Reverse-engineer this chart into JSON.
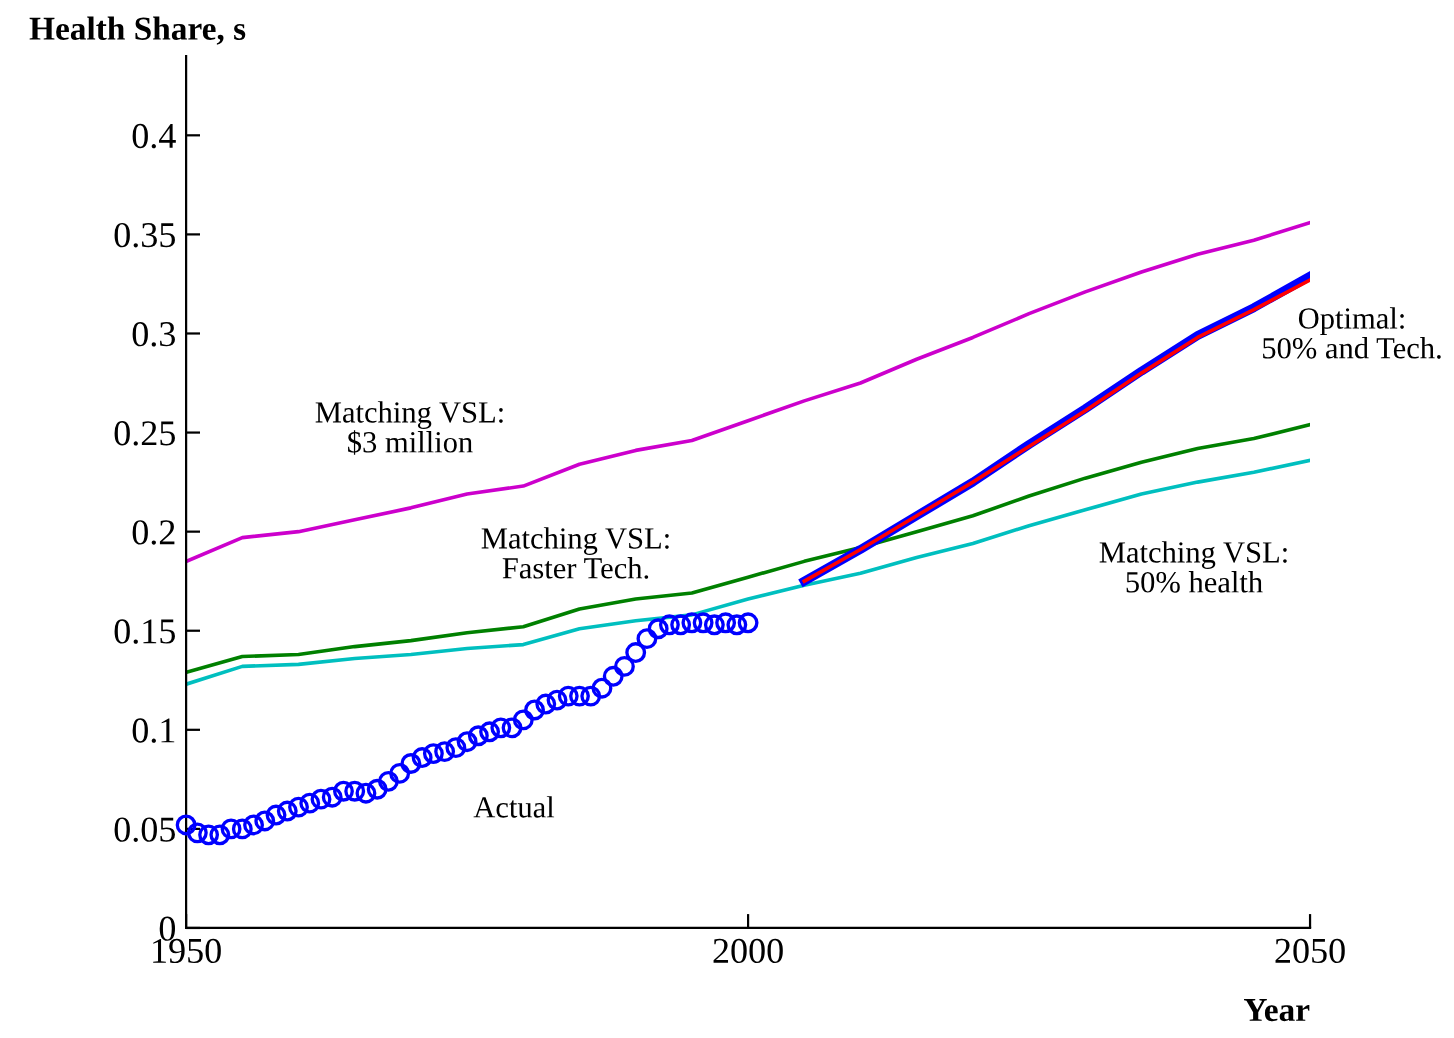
{
  "chart_data": {
    "type": "line",
    "ylabel": "Health Share, s",
    "xlabel": "Year",
    "xlim": [
      1950,
      2050
    ],
    "ylim": [
      0,
      0.44
    ],
    "xticks": [
      1950,
      2000,
      2050
    ],
    "yticks": [
      0,
      0.05,
      0.1,
      0.15,
      0.2,
      0.25,
      0.3,
      0.35,
      0.4
    ],
    "grid": false,
    "legend": false,
    "series": [
      {
        "color": "#cc00cc",
        "x": [
          1950,
          1955,
          1960,
          1965,
          1970,
          1975,
          1980,
          1985,
          1990,
          1995,
          2000,
          2005,
          2010,
          2015,
          2020,
          2025,
          2030,
          2035,
          2040,
          2045,
          2050
        ],
        "values": [
          0.185,
          0.197,
          0.2,
          0.206,
          0.212,
          0.219,
          0.223,
          0.234,
          0.241,
          0.246,
          0.256,
          0.266,
          0.275,
          0.287,
          0.298,
          0.31,
          0.321,
          0.331,
          0.34,
          0.347,
          0.356
        ]
      },
      {
        "color": "#008000",
        "x": [
          1950,
          1955,
          1960,
          1965,
          1970,
          1975,
          1980,
          1985,
          1990,
          1995,
          2000,
          2005,
          2010,
          2015,
          2020,
          2025,
          2030,
          2035,
          2040,
          2045,
          2050
        ],
        "values": [
          0.129,
          0.137,
          0.138,
          0.142,
          0.145,
          0.149,
          0.152,
          0.161,
          0.166,
          0.169,
          0.177,
          0.185,
          0.192,
          0.2,
          0.208,
          0.218,
          0.227,
          0.235,
          0.242,
          0.247,
          0.254
        ]
      },
      {
        "color": "#00bfbf",
        "x": [
          1950,
          1955,
          1960,
          1965,
          1970,
          1975,
          1980,
          1985,
          1990,
          1995,
          2000,
          2005,
          2010,
          2015,
          2020,
          2025,
          2030,
          2035,
          2040,
          2045,
          2050
        ],
        "values": [
          0.123,
          0.132,
          0.133,
          0.136,
          0.138,
          0.141,
          0.143,
          0.151,
          0.155,
          0.158,
          0.166,
          0.173,
          0.179,
          0.187,
          0.194,
          0.203,
          0.211,
          0.219,
          0.225,
          0.23,
          0.236
        ]
      },
      {
        "color": "#0000ff",
        "x": [
          2005,
          2010,
          2015,
          2020,
          2025,
          2030,
          2035,
          2040,
          2045,
          2050
        ],
        "values": [
          0.175,
          0.191,
          0.208,
          0.225,
          0.244,
          0.262,
          0.281,
          0.299,
          0.313,
          0.329
        ]
      },
      {
        "color": "#ff0000",
        "x": [
          2005,
          2010,
          2015,
          2020,
          2025,
          2030,
          2035,
          2040,
          2045,
          2050
        ],
        "values": [
          0.175,
          0.191,
          0.208,
          0.225,
          0.243,
          0.261,
          0.28,
          0.298,
          0.312,
          0.327
        ]
      },
      {
        "type": "scatter",
        "marker": "circle",
        "color": "#0000ff",
        "x": [
          1950,
          1951,
          1952,
          1953,
          1954,
          1955,
          1956,
          1957,
          1958,
          1959,
          1960,
          1961,
          1962,
          1963,
          1964,
          1965,
          1966,
          1967,
          1968,
          1969,
          1970,
          1971,
          1972,
          1973,
          1974,
          1975,
          1976,
          1977,
          1978,
          1979,
          1980,
          1981,
          1982,
          1983,
          1984,
          1985,
          1986,
          1987,
          1988,
          1989,
          1990,
          1991,
          1992,
          1993,
          1994,
          1995,
          1996,
          1997,
          1998,
          1999,
          2000
        ],
        "values": [
          0.052,
          0.048,
          0.047,
          0.047,
          0.05,
          0.05,
          0.052,
          0.054,
          0.057,
          0.059,
          0.061,
          0.063,
          0.065,
          0.066,
          0.069,
          0.069,
          0.068,
          0.07,
          0.074,
          0.078,
          0.083,
          0.086,
          0.088,
          0.089,
          0.091,
          0.094,
          0.097,
          0.099,
          0.101,
          0.101,
          0.105,
          0.11,
          0.113,
          0.115,
          0.117,
          0.117,
          0.117,
          0.121,
          0.127,
          0.132,
          0.139,
          0.146,
          0.151,
          0.153,
          0.153,
          0.154,
          0.154,
          0.153,
          0.154,
          0.153,
          0.154
        ]
      }
    ],
    "annotations": [
      "Matching VSL:\n$3 million",
      "Matching VSL:\nFaster Tech.",
      "Matching VSL:\n50% health",
      "Optimal:\n50% and Tech.",
      "Actual"
    ]
  }
}
